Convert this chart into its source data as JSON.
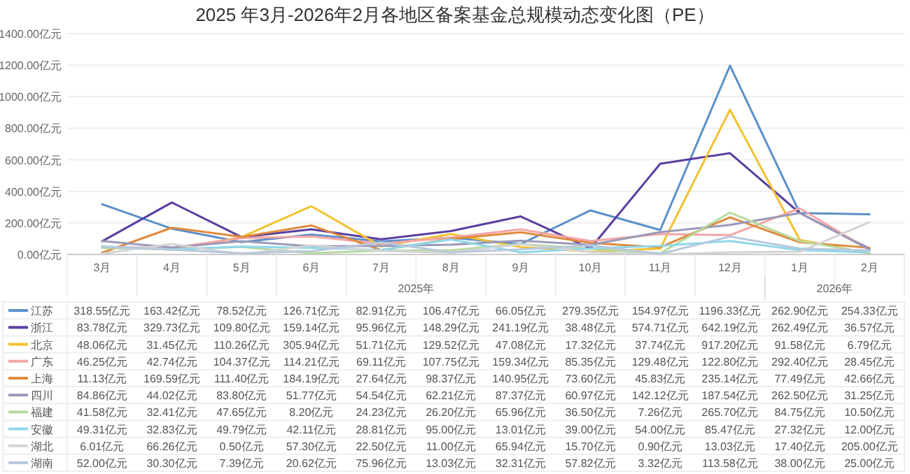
{
  "chart_data": {
    "type": "line",
    "title": "2025 年3月-2026年2月各地区备案基金总规模动态变化图（PE）",
    "categories": [
      "3月",
      "4月",
      "5月",
      "6月",
      "7月",
      "8月",
      "9月",
      "10月",
      "11月",
      "12月",
      "1月",
      "2月"
    ],
    "annotations": [
      "2025年",
      "2026年"
    ],
    "ylim": [
      0,
      1400
    ],
    "yticks": [
      {
        "value": 0,
        "label": "0.00亿元"
      },
      {
        "value": 200,
        "label": "200.00亿元"
      },
      {
        "value": 400,
        "label": "400.00亿元"
      },
      {
        "value": 600,
        "label": "600.00亿元"
      },
      {
        "value": 800,
        "label": "800.00亿元"
      },
      {
        "value": 1000,
        "label": "1000.00亿元"
      },
      {
        "value": 1200,
        "label": "1200.00亿元"
      },
      {
        "value": 1400,
        "label": "1400.00亿元"
      }
    ],
    "grid": "y",
    "legend": "bottom",
    "marker": "none",
    "line_style": "solid",
    "series": [
      {
        "name": "江苏",
        "color": "#5b8fc9",
        "values": [
          318.55,
          163.42,
          78.52,
          126.71,
          82.91,
          106.47,
          66.05,
          279.35,
          154.97,
          1196.33,
          262.9,
          254.33
        ],
        "value_labels": [
          "318.55亿元",
          "163.42亿元",
          "78.52亿元",
          "126.71亿元",
          "82.91亿元",
          "106.47亿元",
          "66.05亿元",
          "279.35亿元",
          "154.97亿元",
          "1196.33亿元",
          "262.90亿元",
          "254.33亿元"
        ]
      },
      {
        "name": "浙江",
        "color": "#5a3fa0",
        "values": [
          83.78,
          329.73,
          109.8,
          159.14,
          95.96,
          148.29,
          241.19,
          38.48,
          574.71,
          642.19,
          262.49,
          36.57
        ],
        "value_labels": [
          "83.78亿元",
          "329.73亿元",
          "109.80亿元",
          "159.14亿元",
          "95.96亿元",
          "148.29亿元",
          "241.19亿元",
          "38.48亿元",
          "574.71亿元",
          "642.19亿元",
          "262.49亿元",
          "36.57亿元"
        ]
      },
      {
        "name": "北京",
        "color": "#f2c230",
        "values": [
          48.06,
          31.45,
          110.26,
          305.94,
          51.71,
          129.52,
          47.08,
          17.32,
          37.74,
          917.2,
          91.58,
          6.79
        ],
        "value_labels": [
          "48.06亿元",
          "31.45亿元",
          "110.26亿元",
          "305.94亿元",
          "51.71亿元",
          "129.52亿元",
          "47.08亿元",
          "17.32亿元",
          "37.74亿元",
          "917.20亿元",
          "91.58亿元",
          "6.79亿元"
        ]
      },
      {
        "name": "广东",
        "color": "#f4a6a6",
        "values": [
          46.25,
          42.74,
          104.37,
          114.21,
          69.11,
          107.75,
          159.34,
          85.35,
          129.48,
          122.8,
          292.4,
          28.45
        ],
        "value_labels": [
          "46.25亿元",
          "42.74亿元",
          "104.37亿元",
          "114.21亿元",
          "69.11亿元",
          "107.75亿元",
          "159.34亿元",
          "85.35亿元",
          "129.48亿元",
          "122.80亿元",
          "292.40亿元",
          "28.45亿元"
        ]
      },
      {
        "name": "上海",
        "color": "#e08a3c",
        "values": [
          11.13,
          169.59,
          111.4,
          184.19,
          27.64,
          98.37,
          140.95,
          73.6,
          45.83,
          235.14,
          77.49,
          42.66
        ],
        "value_labels": [
          "11.13亿元",
          "169.59亿元",
          "111.40亿元",
          "184.19亿元",
          "27.64亿元",
          "98.37亿元",
          "140.95亿元",
          "73.60亿元",
          "45.83亿元",
          "235.14亿元",
          "77.49亿元",
          "42.66亿元"
        ]
      },
      {
        "name": "四川",
        "color": "#9a9ab8",
        "values": [
          84.86,
          44.02,
          83.8,
          51.77,
          54.54,
          62.21,
          87.37,
          60.97,
          142.12,
          187.54,
          262.5,
          31.25
        ],
        "value_labels": [
          "84.86亿元",
          "44.02亿元",
          "83.80亿元",
          "51.77亿元",
          "54.54亿元",
          "62.21亿元",
          "87.37亿元",
          "60.97亿元",
          "142.12亿元",
          "187.54亿元",
          "262.50亿元",
          "31.25亿元"
        ]
      },
      {
        "name": "福建",
        "color": "#b7d9a0",
        "values": [
          41.58,
          32.41,
          47.65,
          8.2,
          24.23,
          26.2,
          65.96,
          36.5,
          7.26,
          265.7,
          84.75,
          10.5
        ],
        "value_labels": [
          "41.58亿元",
          "32.41亿元",
          "47.65亿元",
          "8.20亿元",
          "24.23亿元",
          "26.20亿元",
          "65.96亿元",
          "36.50亿元",
          "7.26亿元",
          "265.70亿元",
          "84.75亿元",
          "10.50亿元"
        ]
      },
      {
        "name": "安徽",
        "color": "#8fd8ea",
        "values": [
          49.31,
          32.83,
          49.79,
          42.11,
          28.81,
          95.0,
          13.01,
          39.0,
          54.0,
          85.47,
          27.32,
          12.0
        ],
        "value_labels": [
          "49.31亿元",
          "32.83亿元",
          "49.79亿元",
          "42.11亿元",
          "28.81亿元",
          "95.00亿元",
          "13.01亿元",
          "39.00亿元",
          "54.00亿元",
          "85.47亿元",
          "27.32亿元",
          "12.00亿元"
        ]
      },
      {
        "name": "湖北",
        "color": "#d4d4d4",
        "values": [
          6.01,
          66.26,
          0.5,
          57.3,
          22.5,
          11.0,
          65.94,
          15.7,
          0.9,
          13.03,
          17.4,
          205.0
        ],
        "value_labels": [
          "6.01亿元",
          "66.26亿元",
          "0.50亿元",
          "57.30亿元",
          "22.50亿元",
          "11.00亿元",
          "65.94亿元",
          "15.70亿元",
          "0.90亿元",
          "13.03亿元",
          "17.40亿元",
          "205.00亿元"
        ]
      },
      {
        "name": "湖南",
        "color": "#b8c8dc",
        "values": [
          52.0,
          30.3,
          7.39,
          20.62,
          75.96,
          13.03,
          32.31,
          57.82,
          3.32,
          113.58,
          38.0,
          25.0
        ],
        "value_labels": [
          "52.00亿元",
          "30.30亿元",
          "7.39亿元",
          "20.62亿元",
          "75.96亿元",
          "13.03亿元",
          "32.31亿元",
          "57.82亿元",
          "3.32亿元",
          "113.58亿元",
          "38.00亿元",
          "25.00亿元"
        ]
      }
    ]
  }
}
